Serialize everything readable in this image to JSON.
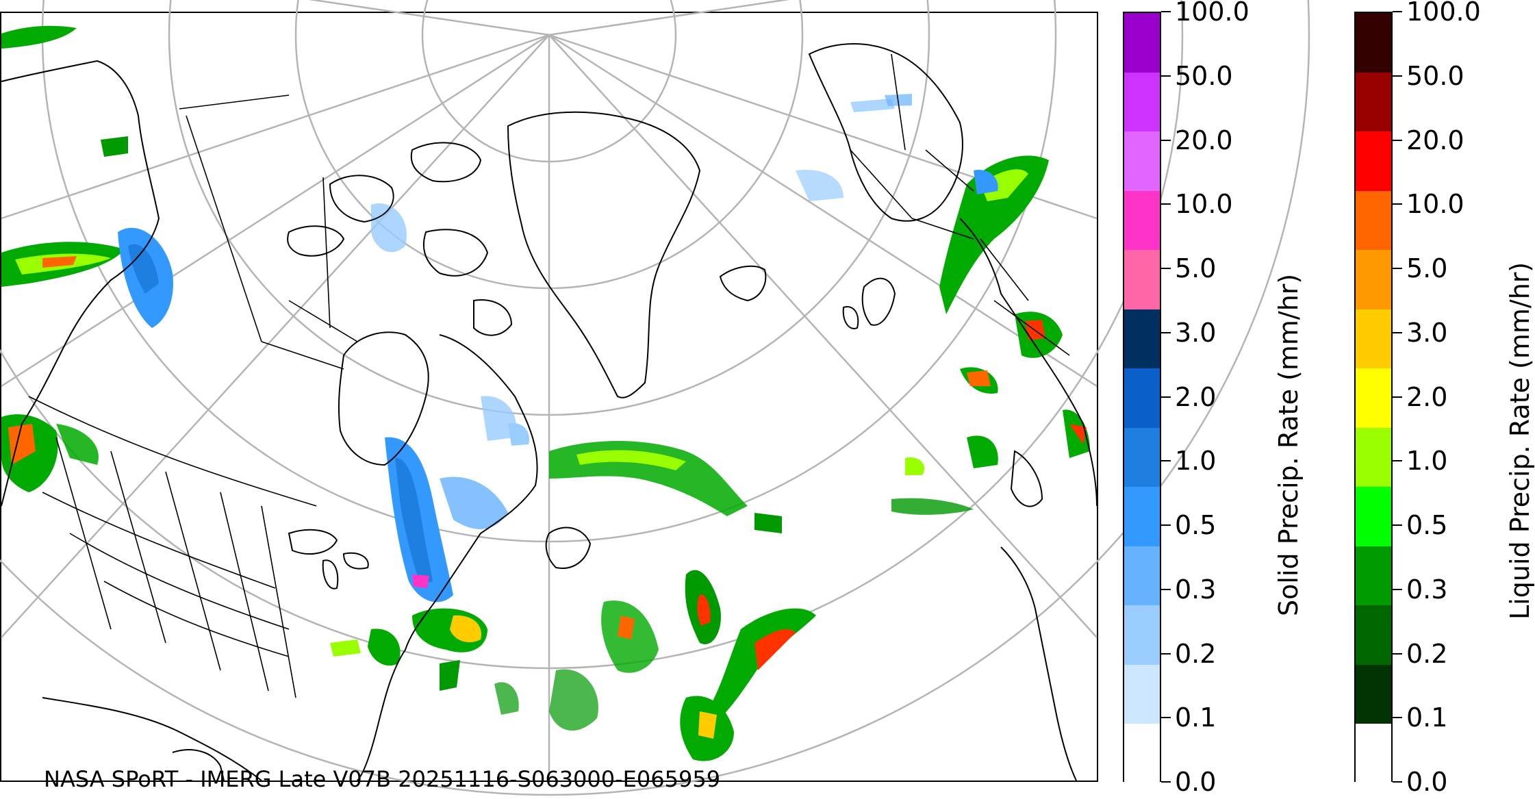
{
  "map": {
    "credit_text": "NASA SPoRT - IMERG Late V07B 20251116-S063000-E065959",
    "colors": {
      "coastline": "#000000",
      "borders": "#000000",
      "graticule": "#b4b4b4"
    }
  },
  "colorbars": {
    "solid": {
      "title": "Solid Precip. Rate (mm/hr)",
      "tick_labels": [
        "0.0",
        "0.1",
        "0.2",
        "0.3",
        "0.5",
        "1.0",
        "2.0",
        "3.0",
        "5.0",
        "10.0",
        "20.0",
        "50.0",
        "100.0"
      ],
      "colors": [
        "#ffffff",
        "#cce6ff",
        "#99ccff",
        "#66b2ff",
        "#3399ff",
        "#1f7fe0",
        "#0a5fc8",
        "#003060",
        "#ff66a8",
        "#ff33c8",
        "#e066ff",
        "#cc33ff",
        "#9900cc"
      ]
    },
    "liquid": {
      "title": "Liquid Precip. Rate (mm/hr)",
      "tick_labels": [
        "0.0",
        "0.1",
        "0.2",
        "0.3",
        "0.5",
        "1.0",
        "2.0",
        "3.0",
        "5.0",
        "10.0",
        "20.0",
        "50.0",
        "100.0"
      ],
      "colors": [
        "#ffffff",
        "#003300",
        "#006600",
        "#009900",
        "#00ff00",
        "#99ff00",
        "#ffff00",
        "#ffcc00",
        "#ff9900",
        "#ff6600",
        "#ff0000",
        "#990000",
        "#330000"
      ]
    }
  }
}
